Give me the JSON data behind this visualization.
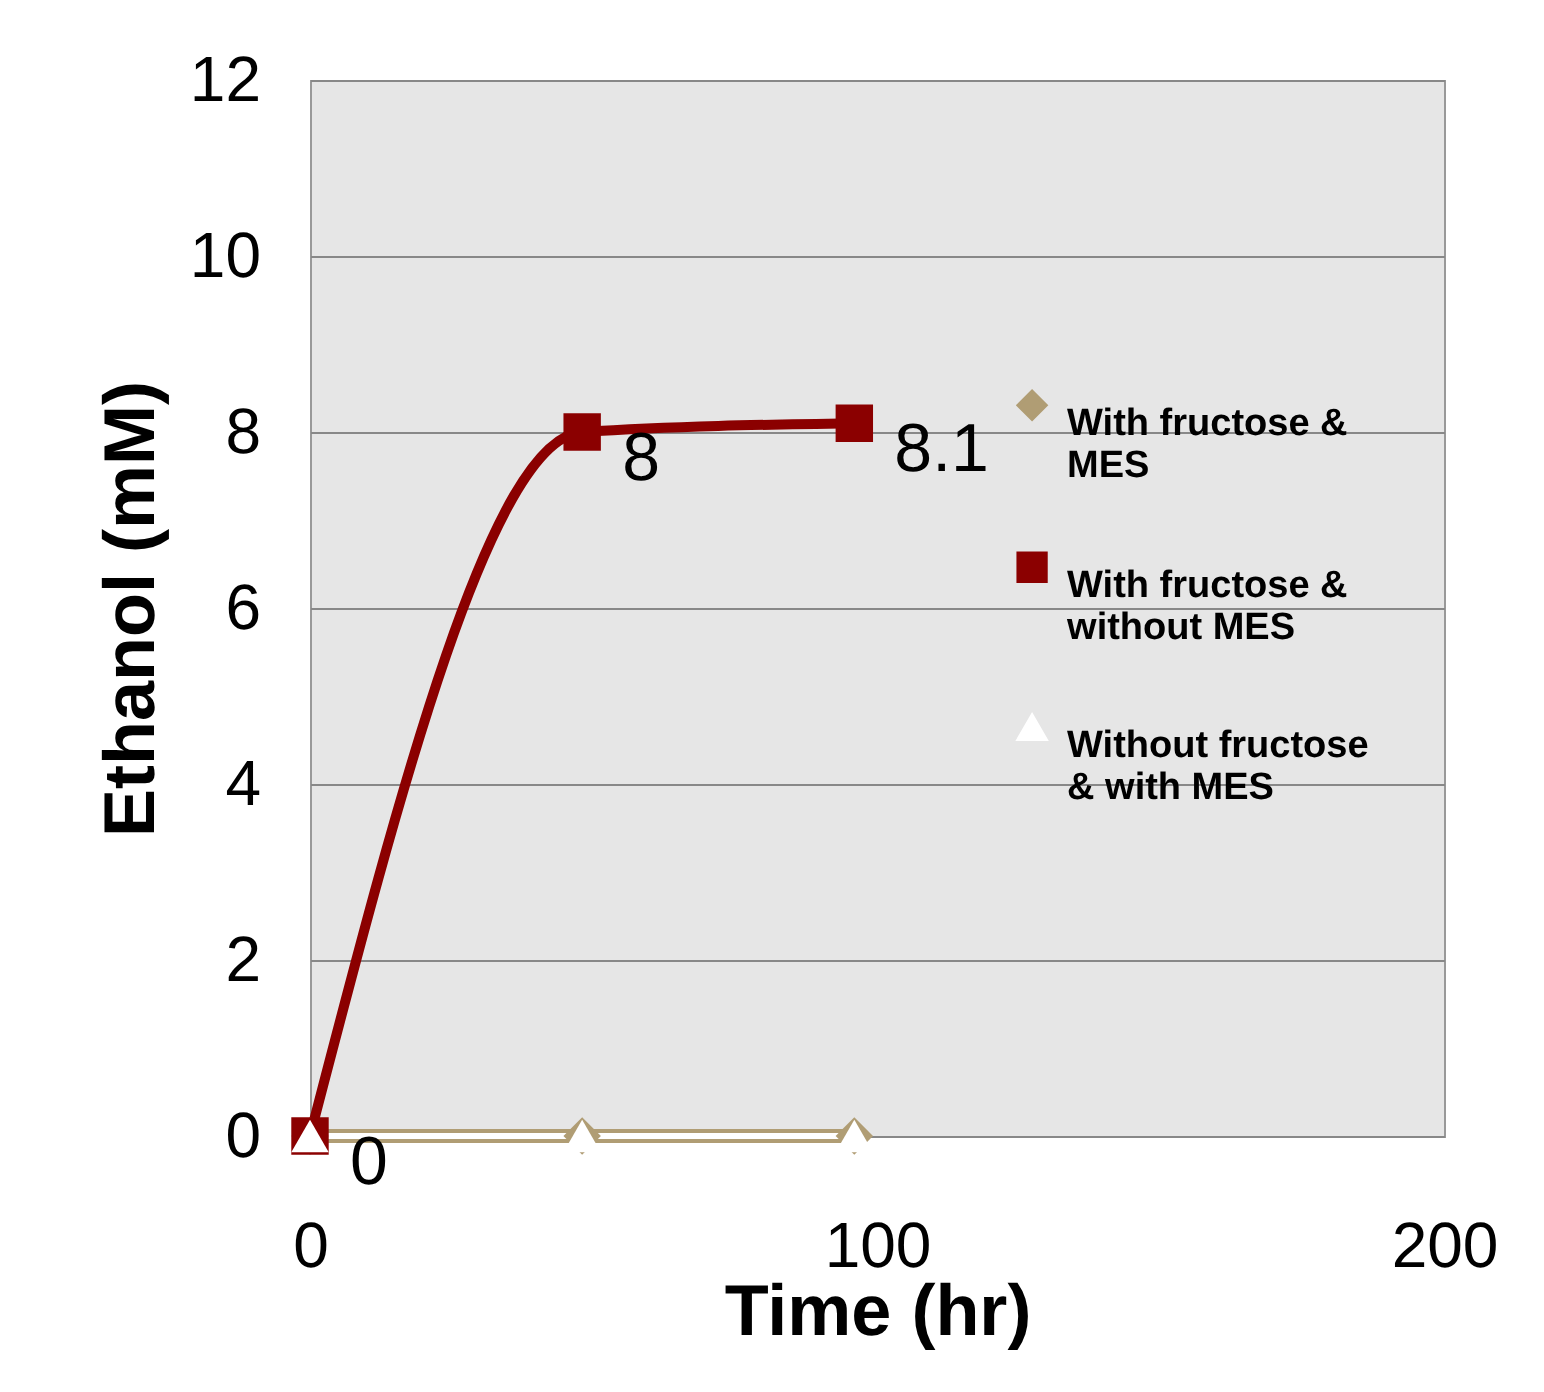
{
  "chart_data": {
    "type": "line",
    "xlabel": "Time (hr)",
    "ylabel": "Ethanol (mM)",
    "x": [
      0,
      48,
      96
    ],
    "xlim": [
      0,
      200
    ],
    "xticks": [
      0,
      100,
      200
    ],
    "ylim": [
      0,
      12
    ],
    "yticks": [
      0,
      2,
      4,
      6,
      8,
      10,
      12
    ],
    "grid": "y",
    "legend": "right",
    "line_style": "solid",
    "series": [
      {
        "name": "With fructose & MES",
        "color": "#b09d74",
        "values": [
          0,
          0,
          0
        ],
        "marker": "diamond"
      },
      {
        "name": "With fructose & without MES",
        "color": "#8b0000",
        "values": [
          0,
          8,
          8.1
        ],
        "marker": "square",
        "value_labels": [
          "0",
          "8",
          "8.1"
        ]
      },
      {
        "name": "Without fructose & with MES",
        "color": "#ffffff",
        "values": [
          0,
          0,
          0
        ],
        "marker": "triangle"
      }
    ]
  }
}
